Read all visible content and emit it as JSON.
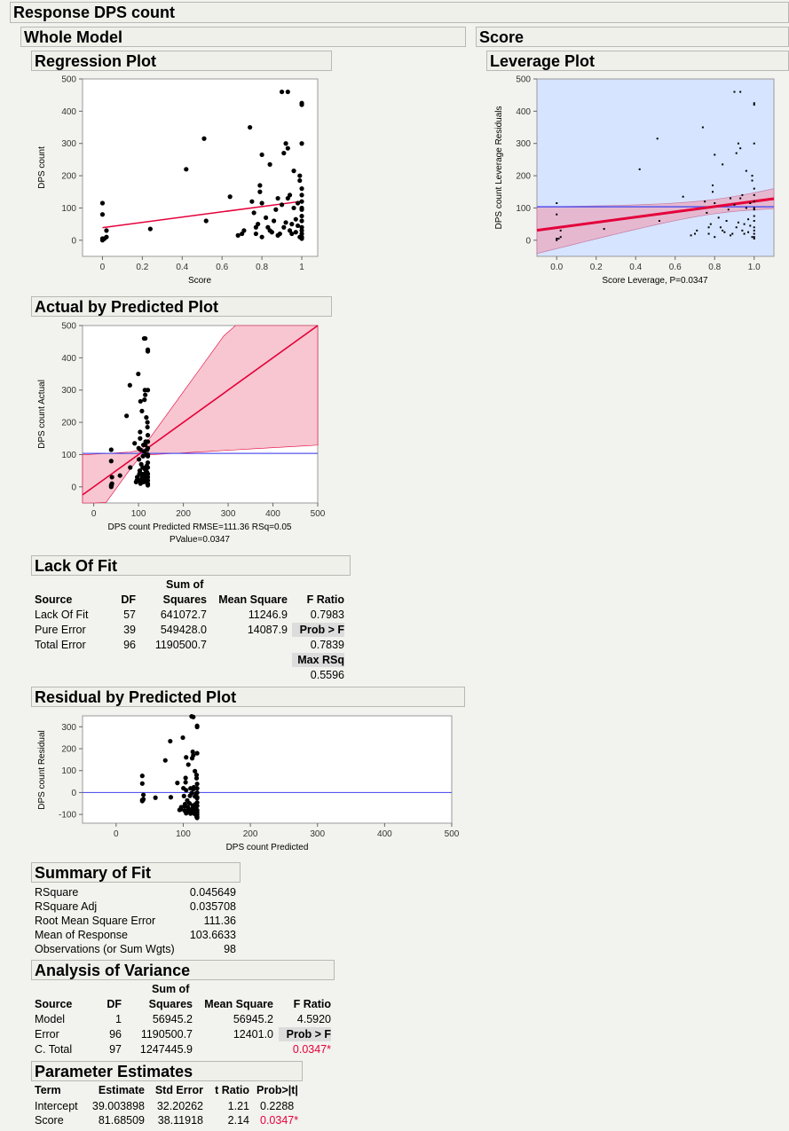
{
  "window": {
    "title": "Response DPS count"
  },
  "whole_model": {
    "title": "Whole Model"
  },
  "score_section": {
    "title": "Score"
  },
  "colors": {
    "red_line": "#e4003a",
    "blue_line": "#5555ee",
    "band": "#f7c6d0",
    "leverage_bg": "#d6e4ff",
    "points": "#000000"
  },
  "regression_plot": {
    "title": "Regression Plot",
    "xlabel": "Score",
    "ylabel": "DPS count",
    "x_ticks": [
      "0",
      "0.2",
      "0.4",
      "0.6",
      "0.8",
      "1"
    ],
    "y_ticks": [
      "0",
      "100",
      "200",
      "300",
      "400",
      "500"
    ]
  },
  "leverage_plot": {
    "title": "Leverage Plot",
    "xlabel": "Score Leverage, P=0.0347",
    "ylabel": "DPS count Leverage Residuals",
    "x_ticks": [
      "0.0",
      "0.2",
      "0.4",
      "0.6",
      "0.8",
      "1.0"
    ],
    "y_ticks": [
      "0",
      "100",
      "200",
      "300",
      "400",
      "500"
    ]
  },
  "actual_predicted": {
    "title": "Actual by Predicted Plot",
    "xlabel": "DPS count Predicted RMSE=111.36 RSq=0.05",
    "xlabel2": "PValue=0.0347",
    "ylabel": "DPS count Actual",
    "x_ticks": [
      "0",
      "100",
      "200",
      "300",
      "400",
      "500"
    ],
    "y_ticks": [
      "0",
      "100",
      "200",
      "300",
      "400",
      "500"
    ]
  },
  "lack_of_fit": {
    "title": "Lack Of Fit",
    "headers": {
      "source": "Source",
      "df": "DF",
      "sum_top": "Sum of",
      "sum_bottom": "Squares",
      "ms": "Mean Square",
      "f": "F Ratio"
    },
    "rows": [
      {
        "source": "Lack Of Fit",
        "df": "57",
        "ss": "641072.7",
        "ms": "11246.9",
        "f": "0.7983"
      },
      {
        "source": "Pure Error",
        "df": "39",
        "ss": "549428.0",
        "ms": "14087.9",
        "f": "Prob > F"
      },
      {
        "source": "Total Error",
        "df": "96",
        "ss": "1190500.7",
        "ms": "",
        "f": "0.7839"
      }
    ],
    "max_rsq_label": "Max RSq",
    "max_rsq": "0.5596"
  },
  "residual_plot": {
    "title": "Residual by Predicted Plot",
    "xlabel": "DPS count Predicted",
    "ylabel": "DPS count Residual",
    "x_ticks": [
      "0",
      "100",
      "200",
      "300",
      "400",
      "500"
    ],
    "y_ticks": [
      "-100",
      "0",
      "100",
      "200",
      "300"
    ]
  },
  "summary_of_fit": {
    "title": "Summary of Fit",
    "rows": [
      {
        "label": "RSquare",
        "value": "0.045649"
      },
      {
        "label": "RSquare Adj",
        "value": "0.035708"
      },
      {
        "label": "Root Mean Square Error",
        "value": "111.36"
      },
      {
        "label": "Mean of Response",
        "value": "103.6633"
      },
      {
        "label": "Observations (or Sum Wgts)",
        "value": "98"
      }
    ]
  },
  "anova": {
    "title": "Analysis of Variance",
    "headers": {
      "source": "Source",
      "df": "DF",
      "sum_top": "Sum of",
      "sum_bottom": "Squares",
      "ms": "Mean Square",
      "f": "F Ratio"
    },
    "rows": [
      {
        "source": "Model",
        "df": "1",
        "ss": "56945.2",
        "ms": "56945.2",
        "f": "4.5920"
      },
      {
        "source": "Error",
        "df": "96",
        "ss": "1190500.7",
        "ms": "12401.0",
        "f": "Prob > F"
      },
      {
        "source": "C. Total",
        "df": "97",
        "ss": "1247445.9",
        "ms": "",
        "f": "0.0347*"
      }
    ]
  },
  "parameter_estimates": {
    "title": "Parameter Estimates",
    "headers": {
      "term": "Term",
      "estimate": "Estimate",
      "stderr": "Std Error",
      "t": "t Ratio",
      "p": "Prob>|t|"
    },
    "rows": [
      {
        "term": "Intercept",
        "estimate": "39.003898",
        "stderr": "32.20262",
        "t": "1.21",
        "p": "0.2288"
      },
      {
        "term": "Score",
        "estimate": "81.68509",
        "stderr": "38.11918",
        "t": "2.14",
        "p": "0.0347*"
      }
    ]
  },
  "chart_data": [
    {
      "type": "scatter",
      "title": "Regression Plot",
      "xlabel": "Score",
      "ylabel": "DPS count",
      "xlim": [
        -0.1,
        1.08
      ],
      "ylim": [
        -50,
        500
      ],
      "points": [
        [
          0,
          5
        ],
        [
          0,
          0
        ],
        [
          0,
          115
        ],
        [
          0,
          80
        ],
        [
          0.01,
          5
        ],
        [
          0.02,
          30
        ],
        [
          0.02,
          10
        ],
        [
          0.24,
          35
        ],
        [
          0.42,
          220
        ],
        [
          0.51,
          315
        ],
        [
          0.52,
          60
        ],
        [
          0.64,
          135
        ],
        [
          0.68,
          15
        ],
        [
          0.7,
          20
        ],
        [
          0.71,
          30
        ],
        [
          0.74,
          350
        ],
        [
          0.75,
          120
        ],
        [
          0.76,
          85
        ],
        [
          0.77,
          40
        ],
        [
          0.77,
          20
        ],
        [
          0.78,
          50
        ],
        [
          0.79,
          170
        ],
        [
          0.79,
          150
        ],
        [
          0.8,
          10
        ],
        [
          0.8,
          115
        ],
        [
          0.8,
          265
        ],
        [
          0.82,
          70
        ],
        [
          0.83,
          40
        ],
        [
          0.84,
          30
        ],
        [
          0.84,
          235
        ],
        [
          0.85,
          25
        ],
        [
          0.86,
          60
        ],
        [
          0.87,
          95
        ],
        [
          0.88,
          15
        ],
        [
          0.88,
          130
        ],
        [
          0.89,
          20
        ],
        [
          0.9,
          460
        ],
        [
          0.9,
          110
        ],
        [
          0.91,
          40
        ],
        [
          0.91,
          270
        ],
        [
          0.92,
          300
        ],
        [
          0.92,
          55
        ],
        [
          0.93,
          285
        ],
        [
          0.93,
          130
        ],
        [
          0.93,
          460
        ],
        [
          0.94,
          30
        ],
        [
          0.94,
          140
        ],
        [
          0.95,
          20
        ],
        [
          0.95,
          50
        ],
        [
          0.96,
          100
        ],
        [
          0.96,
          215
        ],
        [
          0.97,
          65
        ],
        [
          0.97,
          25
        ],
        [
          0.98,
          115
        ],
        [
          0.98,
          45
        ],
        [
          0.99,
          200
        ],
        [
          0.99,
          10
        ],
        [
          0.99,
          185
        ],
        [
          1,
          420
        ],
        [
          1,
          425
        ],
        [
          1,
          300
        ],
        [
          1,
          160
        ],
        [
          1,
          140
        ],
        [
          1,
          120
        ],
        [
          1,
          100
        ],
        [
          1,
          95
        ],
        [
          1,
          75
        ],
        [
          1,
          60
        ],
        [
          1,
          40
        ],
        [
          1,
          30
        ],
        [
          1,
          20
        ],
        [
          1,
          10
        ],
        [
          1,
          5
        ]
      ],
      "fit": {
        "intercept": 39.003898,
        "slope": 81.68509
      }
    },
    {
      "type": "scatter",
      "title": "Leverage Plot",
      "xlabel": "Score Leverage, P=0.0347",
      "ylabel": "DPS count Leverage Residuals",
      "xlim": [
        -0.1,
        1.1
      ],
      "ylim": [
        -50,
        500
      ],
      "mean": 103.66,
      "fit": {
        "intercept": 39.003898,
        "slope": 81.68509
      }
    },
    {
      "type": "scatter",
      "title": "Actual by Predicted Plot",
      "xlabel": "DPS count Predicted",
      "ylabel": "DPS count Actual",
      "xlim": [
        -25,
        500
      ],
      "ylim": [
        -50,
        500
      ],
      "mean": 103.66
    },
    {
      "type": "scatter",
      "title": "Residual by Predicted Plot",
      "xlabel": "DPS count Predicted",
      "ylabel": "DPS count Residual",
      "xlim": [
        -50,
        500
      ],
      "ylim": [
        -140,
        350
      ],
      "zero_line": 0
    }
  ]
}
